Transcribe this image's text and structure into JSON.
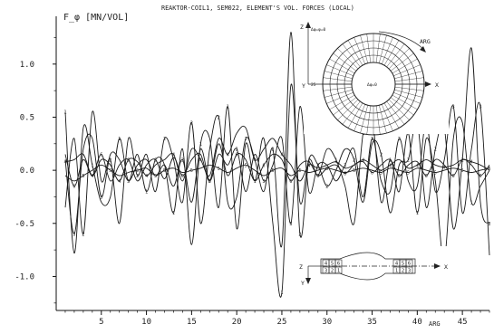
{
  "chart_data": {
    "type": "line",
    "title": "REAKTOR-COIL1, SEM022, ELEMENT'S VOL. FORCES (LOCAL)",
    "ylabel": "F_φ [MN/VOL]",
    "xlabel": "ARG",
    "xlim": [
      0,
      48
    ],
    "ylim": [
      -1.32,
      1.45
    ],
    "x_ticks": [
      "5",
      "10",
      "15",
      "20",
      "25",
      "30",
      "35",
      "40",
      "45"
    ],
    "y_ticks": [
      "1.0",
      "0.5",
      "0.0",
      "-0.5",
      "-1.0"
    ],
    "grid": false,
    "x": [
      1,
      2,
      3,
      4,
      5,
      6,
      7,
      8,
      9,
      10,
      11,
      12,
      13,
      14,
      15,
      16,
      17,
      18,
      19,
      20,
      21,
      22,
      23,
      24,
      25,
      26,
      27,
      28,
      29,
      30,
      31,
      32,
      33,
      34,
      35,
      36,
      37,
      38,
      39,
      40,
      41,
      42,
      43,
      44,
      45,
      46,
      47,
      48
    ],
    "series": [
      {
        "marker": "1",
        "values": [
          0.55,
          -0.78,
          0.4,
          0.05,
          -0.3,
          -0.25,
          0.3,
          -0.1,
          0.15,
          -0.2,
          0.1,
          0.05,
          -0.4,
          0.2,
          -0.7,
          0.25,
          0.3,
          -0.35,
          0.6,
          -0.55,
          0.25,
          -0.1,
          0.3,
          -0.5,
          -1.15,
          0.8,
          -0.3,
          0.1,
          -0.05,
          0.2,
          0.1,
          -0.15,
          -0.5,
          0.35,
          0.5,
          -0.3,
          0.1,
          -0.2,
          0.35,
          -0.4,
          0.3,
          -0.1,
          -0.85,
          0.3,
          0.45,
          -0.3,
          -0.15,
          0.0
        ]
      },
      {
        "marker": "2",
        "values": [
          -0.35,
          0.3,
          -0.6,
          0.55,
          -0.1,
          0.1,
          -0.5,
          0.3,
          -0.05,
          0.15,
          -0.2,
          0.3,
          0.1,
          -0.3,
          0.45,
          -0.5,
          0.2,
          0.5,
          -0.3,
          -0.25,
          0.3,
          0.1,
          -0.2,
          0.2,
          -0.7,
          1.3,
          -0.6,
          0.1,
          0.05,
          -0.15,
          0.0,
          0.2,
          0.1,
          -0.3,
          0.25,
          0.15,
          -0.4,
          0.05,
          0.1,
          0.45,
          -0.35,
          0.2,
          0.4,
          -0.55,
          0.1,
          1.15,
          -0.3,
          -0.5
        ]
      },
      {
        "marker": "3",
        "values": [
          0.1,
          -0.6,
          0.2,
          0.3,
          -0.25,
          0.15,
          0.1,
          -0.1,
          0.05,
          0.1,
          -0.05,
          0.05,
          -0.15,
          0.1,
          -0.3,
          0.2,
          -0.1,
          0.15,
          0.05,
          0.2,
          -0.2,
          0.15,
          -0.1,
          0.05,
          0.3,
          -0.5,
          0.6,
          -0.2,
          0.05,
          0.05,
          -0.1,
          0.05,
          0.2,
          -0.25,
          0.3,
          -0.1,
          -0.2,
          0.3,
          -0.1,
          -0.15,
          0.45,
          -0.2,
          0.1,
          0.6,
          -0.4,
          0.2,
          0.6,
          -0.8
        ]
      },
      {
        "marker": "4",
        "values": [
          0.08,
          0.1,
          0.15,
          -0.05,
          0.1,
          0.05,
          -0.1,
          0.1,
          0.08,
          -0.05,
          0.05,
          0.1,
          0.15,
          -0.1,
          0.2,
          0.1,
          -0.05,
          0.3,
          0.15,
          0.35,
          0.4,
          0.1,
          0.2,
          0.3,
          0.15,
          0.05,
          -0.1,
          0.05,
          0.02,
          0.05,
          0.08,
          0.02,
          0.05,
          0.1,
          0.05,
          0.0,
          0.05,
          0.1,
          0.02,
          0.05,
          0.1,
          0.05,
          0.03,
          0.05,
          0.1,
          0.08,
          0.05,
          0.0
        ]
      },
      {
        "marker": "5",
        "values": [
          -0.05,
          -0.1,
          -0.05,
          0.0,
          0.05,
          0.0,
          -0.05,
          -0.02,
          0.0,
          0.02,
          -0.05,
          0.0,
          0.02,
          -0.02,
          0.0,
          0.02,
          0.05,
          0.02,
          -0.02,
          0.02,
          0.05,
          0.0,
          -0.05,
          0.0,
          0.02,
          -0.05,
          0.0,
          -0.02,
          0.0,
          0.02,
          0.0,
          -0.02,
          0.0,
          0.02,
          0.0,
          -0.02,
          0.02,
          0.0,
          -0.02,
          0.02,
          0.0,
          -0.02,
          0.0,
          0.02,
          0.0,
          -0.02,
          0.0,
          0.02
        ]
      },
      {
        "marker": "6",
        "values": [
          0.15,
          -0.15,
          0.1,
          -0.05,
          0.15,
          -0.1,
          0.05,
          0.1,
          -0.1,
          0.05,
          0.1,
          -0.08,
          0.12,
          -0.05,
          0.1,
          0.15,
          -0.1,
          0.25,
          -0.05,
          0.15,
          0.1,
          -0.1,
          0.05,
          0.15,
          0.1,
          -0.1,
          0.05,
          0.08,
          -0.05,
          0.02,
          0.05,
          -0.03,
          0.05,
          0.08,
          -0.02,
          0.05,
          0.1,
          -0.05,
          0.05,
          0.08,
          -0.05,
          0.1,
          0.05,
          -0.05,
          0.1,
          0.05,
          -0.05,
          0.05
        ]
      }
    ]
  },
  "inset_top": {
    "annotation": "Δφ=φ=0",
    "arrow_label": "ARG",
    "axis_z": "Z",
    "axis_y": "Y",
    "axis_x": "X",
    "center_label": "Δφ=0",
    "left_number": "25"
  },
  "inset_bottom": {
    "axis_z": "Z",
    "axis_y": "Y",
    "axis_x": "X",
    "row_top_left": [
      "4",
      "5",
      "6"
    ],
    "row_bottom_left": [
      "3",
      "2",
      "1"
    ],
    "row_top_right": [
      "4",
      "5",
      "6"
    ],
    "row_bottom_right": [
      "1",
      "2",
      "3"
    ]
  }
}
